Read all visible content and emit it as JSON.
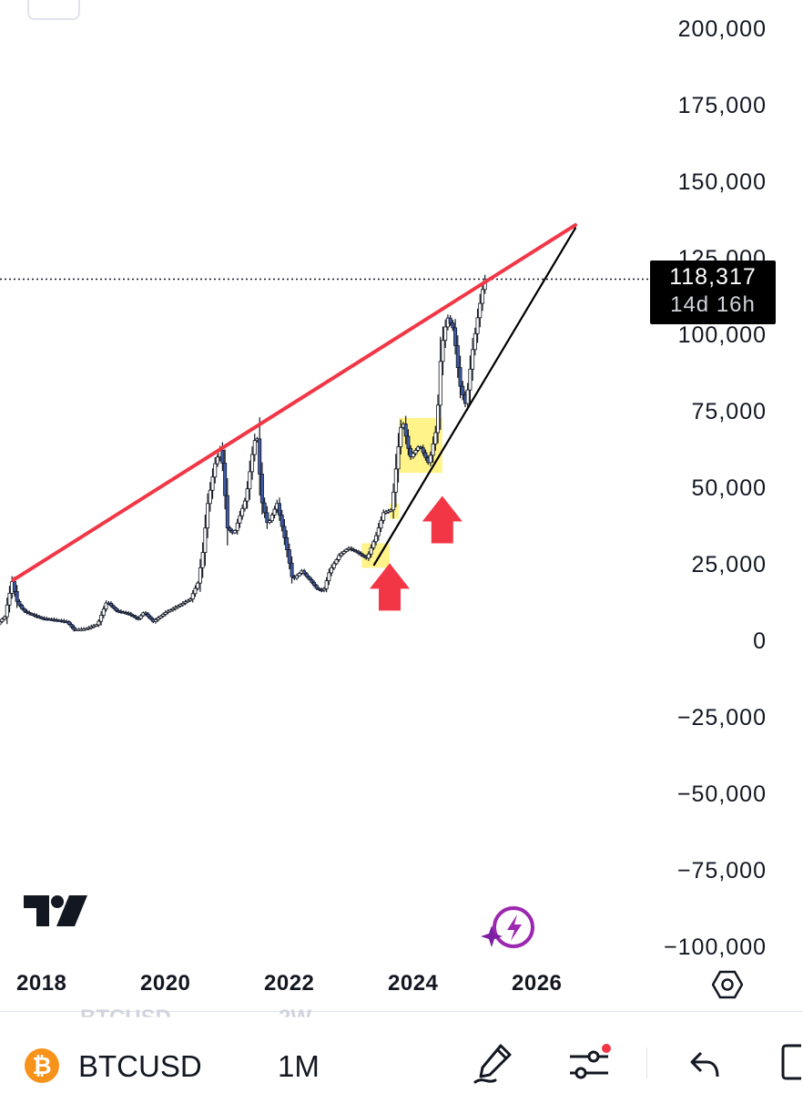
{
  "chart_data": {
    "type": "candlestick",
    "symbol": "BTCUSD",
    "interval": "1M",
    "ylim": [
      -100000,
      200000
    ],
    "y_ticks": [
      "200,000",
      "175,000",
      "150,000",
      "125,000",
      "100,000",
      "75,000",
      "50,000",
      "25,000",
      "0",
      "−25,000",
      "−50,000",
      "−75,000",
      "−100,000"
    ],
    "y_tick_values": [
      200000,
      175000,
      150000,
      125000,
      100000,
      75000,
      50000,
      25000,
      0,
      -25000,
      -50000,
      -75000,
      -100000
    ],
    "x_ticks": [
      "2018",
      "2020",
      "2022",
      "2024",
      "2026"
    ],
    "x_tick_values": [
      2018,
      2020,
      2022,
      2024,
      2026
    ],
    "xlim": [
      2017.0,
      2028.0
    ],
    "last_price": "118,317",
    "last_price_value": 118317,
    "countdown": "14d 16h",
    "price_path": [
      [
        2017.0,
        1000
      ],
      [
        2017.2,
        1500
      ],
      [
        2017.4,
        2500
      ],
      [
        2017.6,
        4000
      ],
      [
        2017.8,
        8000
      ],
      [
        2017.92,
        19500
      ],
      [
        2018.0,
        13000
      ],
      [
        2018.1,
        10000
      ],
      [
        2018.2,
        9000
      ],
      [
        2018.4,
        7500
      ],
      [
        2018.6,
        7000
      ],
      [
        2018.8,
        6400
      ],
      [
        2018.92,
        3800
      ],
      [
        2019.1,
        4000
      ],
      [
        2019.3,
        5500
      ],
      [
        2019.45,
        13000
      ],
      [
        2019.6,
        10000
      ],
      [
        2019.8,
        9000
      ],
      [
        2019.95,
        7200
      ],
      [
        2020.05,
        9500
      ],
      [
        2020.2,
        6400
      ],
      [
        2020.4,
        9400
      ],
      [
        2020.6,
        11500
      ],
      [
        2020.8,
        13800
      ],
      [
        2020.92,
        19000
      ],
      [
        2021.0,
        29000
      ],
      [
        2021.08,
        45000
      ],
      [
        2021.2,
        58000
      ],
      [
        2021.3,
        63500
      ],
      [
        2021.4,
        37000
      ],
      [
        2021.5,
        35000
      ],
      [
        2021.6,
        41000
      ],
      [
        2021.7,
        47000
      ],
      [
        2021.8,
        61000
      ],
      [
        2021.87,
        69000
      ],
      [
        2021.95,
        46000
      ],
      [
        2022.05,
        38000
      ],
      [
        2022.2,
        45000
      ],
      [
        2022.35,
        31000
      ],
      [
        2022.45,
        20000
      ],
      [
        2022.6,
        23000
      ],
      [
        2022.75,
        19500
      ],
      [
        2022.85,
        17000
      ],
      [
        2022.95,
        16500
      ],
      [
        2023.05,
        23000
      ],
      [
        2023.2,
        28000
      ],
      [
        2023.35,
        30500
      ],
      [
        2023.5,
        29000
      ],
      [
        2023.65,
        27000
      ],
      [
        2023.8,
        34500
      ],
      [
        2023.92,
        42000
      ],
      [
        2024.05,
        43000
      ],
      [
        2024.15,
        62000
      ],
      [
        2024.22,
        73000
      ],
      [
        2024.35,
        60000
      ],
      [
        2024.5,
        64000
      ],
      [
        2024.65,
        58000
      ],
      [
        2024.78,
        70000
      ],
      [
        2024.85,
        95000
      ],
      [
        2024.95,
        106000
      ],
      [
        2025.05,
        102000
      ],
      [
        2025.15,
        84000
      ],
      [
        2025.25,
        77000
      ],
      [
        2025.35,
        94000
      ],
      [
        2025.45,
        107000
      ],
      [
        2025.55,
        118317
      ]
    ],
    "resistance_line": {
      "from": [
        2017.92,
        20000
      ],
      "to": [
        2027.0,
        136000
      ],
      "color": "#f23645"
    },
    "support_line": {
      "from": [
        2023.75,
        25000
      ],
      "to": [
        2027.0,
        135000
      ],
      "color": "#000000"
    },
    "highlight_boxes": [
      {
        "x": [
          2023.55,
          2024.0
        ],
        "y": [
          24000,
          32000
        ]
      },
      {
        "x": [
          2024.0,
          2024.15
        ],
        "y": [
          40000,
          45000
        ]
      },
      {
        "x": [
          2024.15,
          2024.85
        ],
        "y": [
          55000,
          73000
        ]
      }
    ],
    "arrows": [
      {
        "x": 2024.0,
        "y": 10000,
        "color": "#f23645"
      },
      {
        "x": 2024.85,
        "y": 32000,
        "color": "#f23645"
      }
    ],
    "colors": {
      "candle_up": "#ffffff",
      "candle_down": "#3e5ba9",
      "wick": "#131722",
      "highlight": "#fff176"
    }
  },
  "bottom_bar": {
    "ghost_symbol": "BTCUSD",
    "ghost_interval": "2W",
    "btc_glyph": "₿",
    "symbol": "BTCUSD",
    "interval": "1M"
  },
  "icons": {
    "logo": "tradingview-logo",
    "ai": "sparkle-lightning-icon",
    "settings": "hexagon-gear-icon",
    "draw": "pen-icon",
    "indicators": "sliders-icon",
    "undo": "undo-icon",
    "fullscreen": "fullscreen-icon"
  },
  "accent_colors": {
    "red": "#f23645",
    "purple": "#9c27b0",
    "btc": "#f7931a"
  }
}
